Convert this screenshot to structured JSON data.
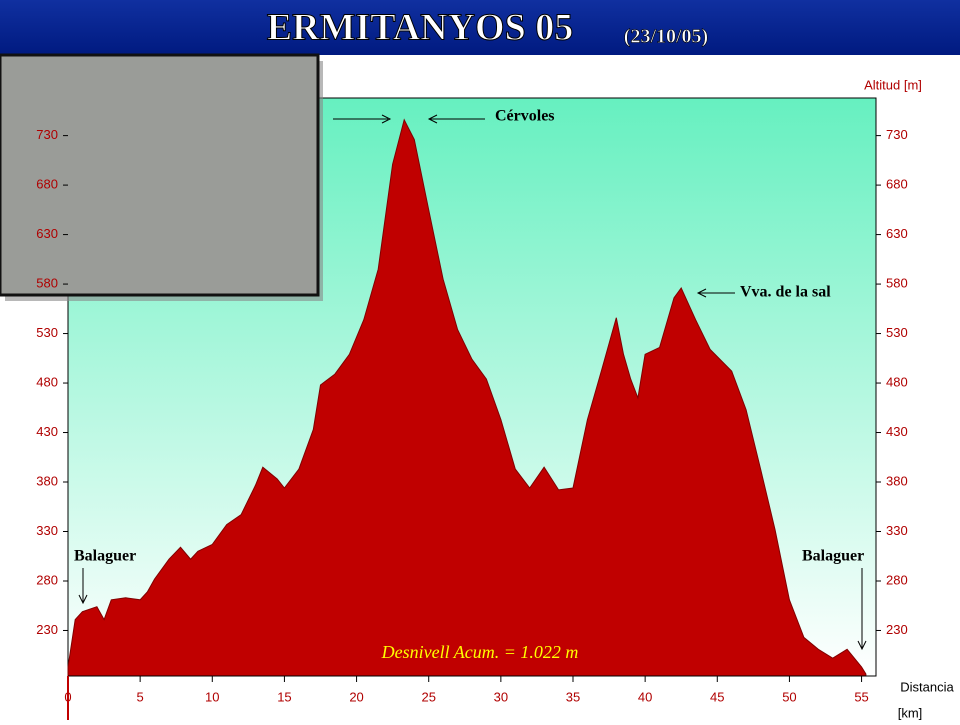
{
  "chart_data": {
    "type": "area",
    "title": "ERMITANYOS 05",
    "subtitle": "(23/10/05)",
    "y_label": "Altitud [m]",
    "x_label": "Distancia",
    "x_unit": "[km]",
    "annotations": [
      "Cérvoles",
      "Vva. de la sal",
      "Balaguer",
      "Balaguer",
      "Desnivell Acum. = 1.022 m"
    ],
    "color": "#c00000",
    "x": [
      0,
      0.5,
      1,
      2,
      2.5,
      3,
      4,
      5,
      5.5,
      6,
      7,
      7.8,
      8.5,
      9,
      10,
      11,
      12,
      13,
      13.5,
      14.5,
      15,
      16,
      17,
      17.5,
      18.5,
      19.5,
      20.5,
      21.5,
      22.5,
      23.3,
      24,
      25,
      26,
      27,
      28,
      29,
      30,
      31,
      32,
      33,
      34,
      35,
      36,
      37,
      38,
      38.5,
      39,
      39.5,
      40,
      41,
      42,
      42.5,
      43.5,
      44.5,
      46,
      47,
      48,
      49,
      50,
      51,
      52,
      53,
      54,
      55,
      55.3
    ],
    "values": [
      193,
      241,
      249,
      254,
      241,
      261,
      263,
      261,
      269,
      282,
      302,
      314,
      302,
      310,
      317,
      337,
      347,
      377,
      395,
      383,
      374,
      393,
      433,
      478,
      489,
      509,
      544,
      595,
      701,
      746,
      726,
      655,
      585,
      534,
      504,
      484,
      443,
      393,
      374,
      395,
      372,
      374,
      443,
      494,
      546,
      509,
      484,
      465,
      509,
      516,
      566,
      576,
      544,
      514,
      492,
      453,
      393,
      332,
      261,
      223,
      211,
      202,
      211,
      193,
      186
    ],
    "xlim": [
      0,
      56
    ],
    "xticks": [
      0,
      5,
      10,
      15,
      20,
      25,
      30,
      35,
      40,
      45,
      50,
      55
    ],
    "ylim": [
      184,
      768
    ],
    "yticks": [
      230,
      280,
      330,
      380,
      430,
      480,
      530,
      580,
      630,
      680,
      730
    ]
  }
}
